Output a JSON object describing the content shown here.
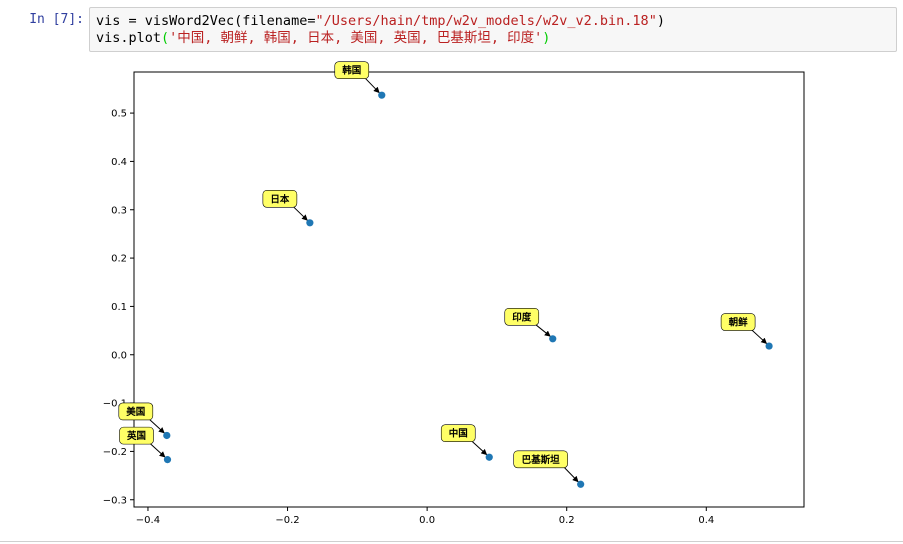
{
  "cell": {
    "prompt": "In [7]:",
    "line1_prefix": "vis = visWord2Vec(filename=",
    "line1_string": "\"/Users/hain/tmp/w2v_models/w2v_v2.bin.18\"",
    "line1_suffix": ")",
    "line2_prefix": "vis.plot",
    "line2_open": "(",
    "line2_string": "'中国, 朝鲜, 韩国, 日本, 美国, 英国, 巴基斯坦, 印度'",
    "line2_close": ")"
  },
  "chart_data": {
    "type": "scatter",
    "title": "",
    "xlabel": "",
    "ylabel": "",
    "xlim": [
      -0.42,
      0.54
    ],
    "ylim": [
      -0.315,
      0.585
    ],
    "xticks": [
      -0.4,
      -0.2,
      0.0,
      0.2,
      0.4
    ],
    "yticks": [
      -0.3,
      -0.2,
      -0.1,
      0.0,
      0.1,
      0.2,
      0.3,
      0.4,
      0.5
    ],
    "xtick_labels": [
      "−0.4",
      "−0.2",
      "0.0",
      "0.2",
      "0.4"
    ],
    "ytick_labels": [
      "−0.3",
      "−0.2",
      "−0.1",
      "0.0",
      "0.1",
      "0.2",
      "0.3",
      "0.4",
      "0.5"
    ],
    "grid": false,
    "marker_color": "#1f77b4",
    "label_box_color": "#ffff66",
    "points": [
      {
        "label": "韩国",
        "x": -0.065,
        "y": 0.537
      },
      {
        "label": "日本",
        "x": -0.168,
        "y": 0.273
      },
      {
        "label": "印度",
        "x": 0.18,
        "y": 0.033
      },
      {
        "label": "朝鲜",
        "x": 0.49,
        "y": 0.018
      },
      {
        "label": "美国",
        "x": -0.373,
        "y": -0.167
      },
      {
        "label": "英国",
        "x": -0.372,
        "y": -0.217
      },
      {
        "label": "中国",
        "x": 0.089,
        "y": -0.212
      },
      {
        "label": "巴基斯坦",
        "x": 0.22,
        "y": -0.268
      }
    ]
  }
}
